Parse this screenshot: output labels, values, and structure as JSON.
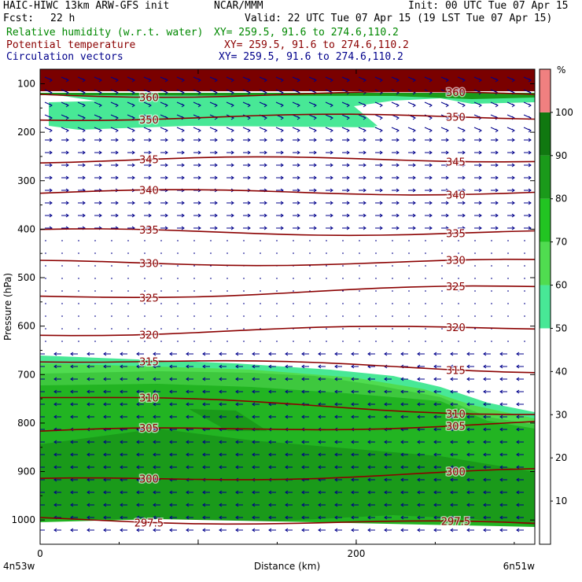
{
  "header": {
    "model": "HAIC-HIWC 13km ARW-GFS init",
    "org": "NCAR/MMM",
    "init": "Init: 00 UTC Tue 07 Apr 15",
    "fcst_label": "Fcst:",
    "fcst_value": "22 h",
    "valid": "Valid: 22 UTC Tue 07 Apr 15 (19 LST Tue 07 Apr 15)",
    "fields": [
      {
        "name": "Relative humidity (w.r.t. water)",
        "xy": "XY= 259.5, 91.6 to 274.6,110.2",
        "color": "#008800"
      },
      {
        "name": "Potential temperature",
        "xy": "XY= 259.5, 91.6 to 274.6,110.2",
        "color": "#8b0000"
      },
      {
        "name": "Circulation vectors",
        "xy": "XY= 259.5, 91.6 to 274.6,110.2",
        "color": "#00008b"
      }
    ]
  },
  "axes": {
    "ylabel": "Pressure (hPa)",
    "xlabel": "Distance (km)",
    "left_point": "4n53w",
    "right_point": "6n51w"
  },
  "colorbar": {
    "unit": "%",
    "levels": [
      10,
      20,
      30,
      40,
      50,
      60,
      70,
      80,
      90,
      100
    ],
    "colors": [
      "#ffffff",
      "#ffffff",
      "#ffffff",
      "#ffffff",
      "#ffffff",
      "#48e896",
      "#50dc50",
      "#22c422",
      "#1a9a1a",
      "#107810",
      "#f08080"
    ]
  },
  "chart_data": {
    "type": "cross-section",
    "xlim": [
      0,
      313
    ],
    "ylim": [
      1050,
      70
    ],
    "xticks": [
      0,
      100,
      200
    ],
    "xtick_labels": [
      "0",
      "",
      "200"
    ],
    "yticks": [
      100,
      200,
      300,
      400,
      500,
      600,
      700,
      800,
      900,
      1000
    ],
    "theta_contours": [
      {
        "label": "360",
        "x": [
          0,
          313
        ],
        "y": [
          122,
          122
        ]
      },
      {
        "label": "350",
        "x": [
          0,
          313
        ],
        "y": [
          170,
          168
        ]
      },
      {
        "label": "345",
        "x": [
          0,
          313
        ],
        "y": [
          258,
          255
        ]
      },
      {
        "label": "340",
        "x": [
          0,
          313
        ],
        "y": [
          325,
          323
        ]
      },
      {
        "label": "335",
        "x": [
          0,
          313
        ],
        "y": [
          405,
          408
        ]
      },
      {
        "label": "330",
        "x": [
          0,
          313
        ],
        "y": [
          470,
          468
        ]
      },
      {
        "label": "325",
        "x": [
          0,
          313
        ],
        "y": [
          540,
          520
        ]
      },
      {
        "label": "320",
        "x": [
          0,
          313
        ],
        "y": [
          615,
          602
        ]
      },
      {
        "label": "315",
        "x": [
          0,
          313
        ],
        "y": [
          668,
          690
        ]
      },
      {
        "label": "310",
        "x": [
          0,
          313
        ],
        "y": [
          745,
          780
        ]
      },
      {
        "label": "305",
        "x": [
          0,
          313
        ],
        "y": [
          820,
          800
        ]
      },
      {
        "label": "300",
        "x": [
          0,
          313
        ],
        "y": [
          920,
          900
        ]
      },
      {
        "label": "297.5",
        "x": [
          0,
          313
        ],
        "y": [
          998,
          1010
        ]
      }
    ],
    "rh_regions_percent": [
      50,
      60,
      70,
      80,
      90
    ]
  }
}
